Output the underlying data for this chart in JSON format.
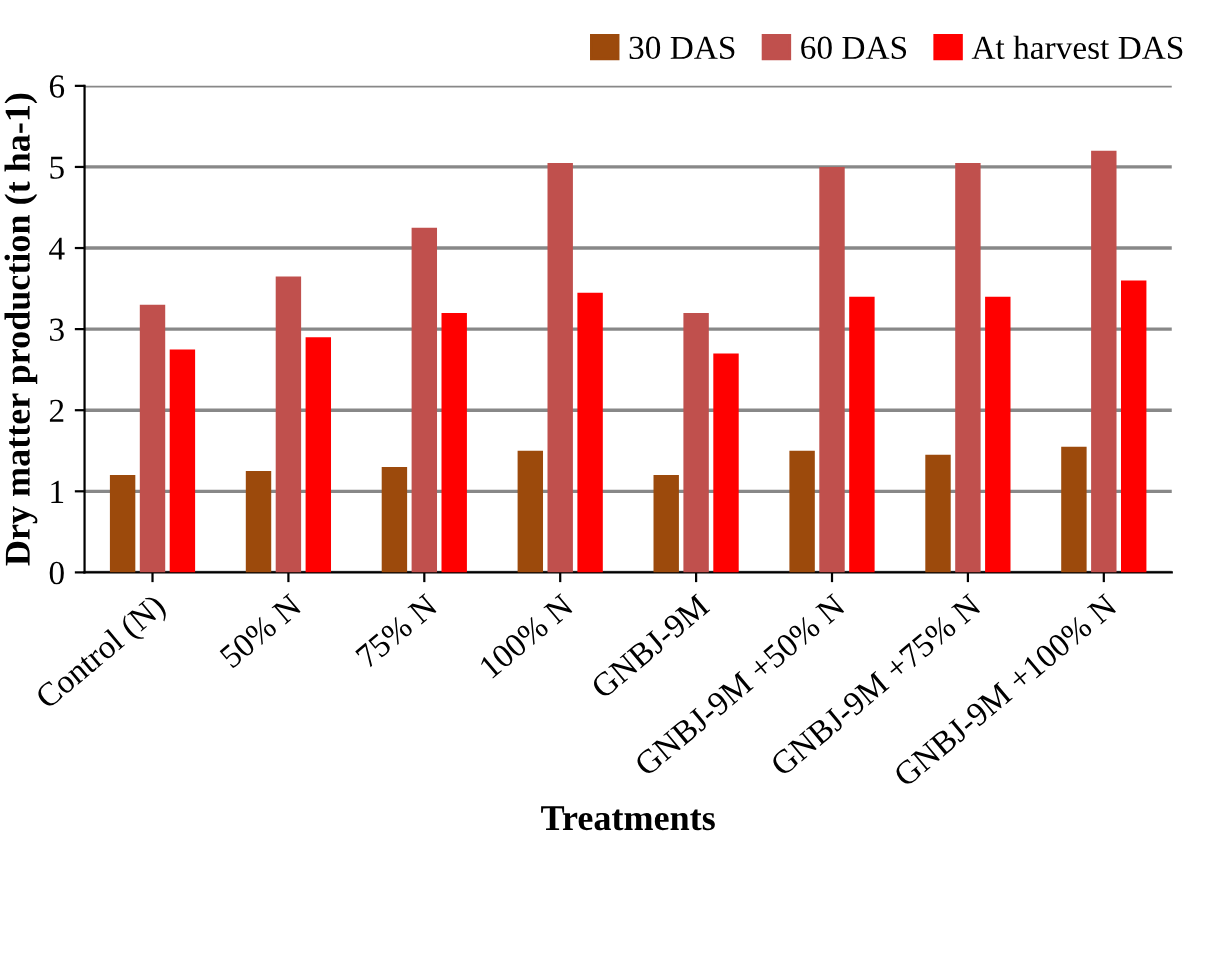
{
  "chart_data": {
    "type": "bar",
    "xlabel": "Treatments",
    "ylabel": "Dry matter production (t ha-1)",
    "categories": [
      "Control (N)",
      "50% N",
      "75% N",
      "100% N",
      "GNBJ-9M",
      "GNBJ-9M +50% N",
      "GNBJ-9M +75% N",
      "GNBJ-9M +100% N"
    ],
    "series": [
      {
        "name": "30 DAS",
        "color": "#9c4a0c",
        "values": [
          1.2,
          1.25,
          1.3,
          1.5,
          1.2,
          1.5,
          1.45,
          1.55
        ]
      },
      {
        "name": "60 DAS",
        "color": "#c0504d",
        "values": [
          3.3,
          3.65,
          4.25,
          5.05,
          3.2,
          5.0,
          5.05,
          5.2
        ]
      },
      {
        "name": "At harvest DAS",
        "color": "#ff0000",
        "values": [
          2.75,
          2.9,
          3.2,
          3.45,
          2.7,
          3.4,
          3.4,
          3.6
        ]
      }
    ],
    "ylim": [
      0,
      6
    ],
    "yticks": [
      0,
      1,
      2,
      3,
      4,
      5,
      6
    ],
    "grid": "y",
    "legend": "top right"
  }
}
